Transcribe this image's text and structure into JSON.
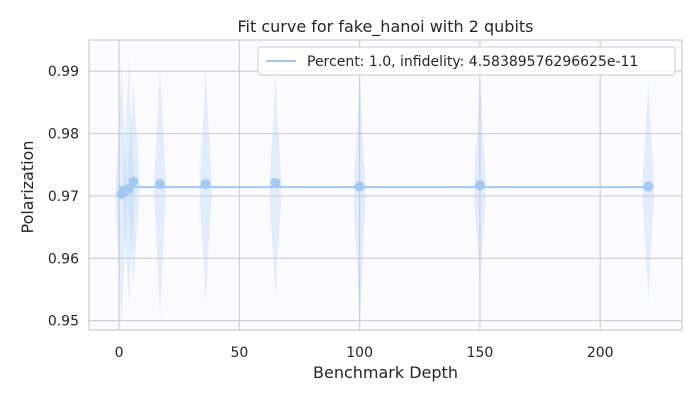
{
  "chart_data": {
    "type": "scatter",
    "title": "Fit curve for fake_hanoi with 2 qubits",
    "xlabel": "Benchmark Depth",
    "ylabel": "Polarization",
    "xlim": [
      -12.5,
      234
    ],
    "ylim": [
      0.9485,
      0.995
    ],
    "xticks": [
      0,
      50,
      100,
      150,
      200
    ],
    "yticks": [
      0.95,
      0.96,
      0.97,
      0.98,
      0.99
    ],
    "xtick_labels": [
      "0",
      "50",
      "100",
      "150",
      "200"
    ],
    "ytick_labels": [
      "0.95",
      "0.96",
      "0.97",
      "0.98",
      "0.99"
    ],
    "grid": true,
    "legend_position": "top-right",
    "colors": {
      "plot_background": "#fbfbfe",
      "grid": "#d0d0d0",
      "axes_edge": "#cccccc",
      "fit_line": "#a1c9f4",
      "points": "#a1c9f4",
      "violin_fill": "#a1c9f4"
    },
    "fit_line": {
      "name": "Percent: 1.0, infidelity: 4.58389576296625e-11",
      "x": [
        0,
        220
      ],
      "y": [
        0.9714,
        0.9714
      ]
    },
    "points": [
      {
        "x": 1,
        "y": 0.9703
      },
      {
        "x": 2,
        "y": 0.9707
      },
      {
        "x": 4,
        "y": 0.9711
      },
      {
        "x": 6,
        "y": 0.9723
      },
      {
        "x": 17,
        "y": 0.9719
      },
      {
        "x": 36,
        "y": 0.9719
      },
      {
        "x": 65,
        "y": 0.9721
      },
      {
        "x": 100,
        "y": 0.9715
      },
      {
        "x": 150,
        "y": 0.9717
      },
      {
        "x": 220,
        "y": 0.9715
      }
    ],
    "violins": [
      {
        "x": 1,
        "ymin": 0.9485,
        "ymax": 0.9915,
        "center": 0.97
      },
      {
        "x": 4,
        "ymin": 0.9525,
        "ymax": 0.992,
        "center": 0.97
      },
      {
        "x": 6,
        "ymin": 0.955,
        "ymax": 0.9885,
        "center": 0.972
      },
      {
        "x": 17,
        "ymin": 0.95,
        "ymax": 0.9915,
        "center": 0.971
      },
      {
        "x": 36,
        "ymin": 0.9525,
        "ymax": 0.991,
        "center": 0.971
      },
      {
        "x": 65,
        "ymin": 0.953,
        "ymax": 0.99,
        "center": 0.971
      },
      {
        "x": 100,
        "ymin": 0.9485,
        "ymax": 0.99,
        "center": 0.97
      },
      {
        "x": 150,
        "ymin": 0.956,
        "ymax": 0.99,
        "center": 0.971
      },
      {
        "x": 220,
        "ymin": 0.953,
        "ymax": 0.9885,
        "center": 0.971
      }
    ]
  }
}
